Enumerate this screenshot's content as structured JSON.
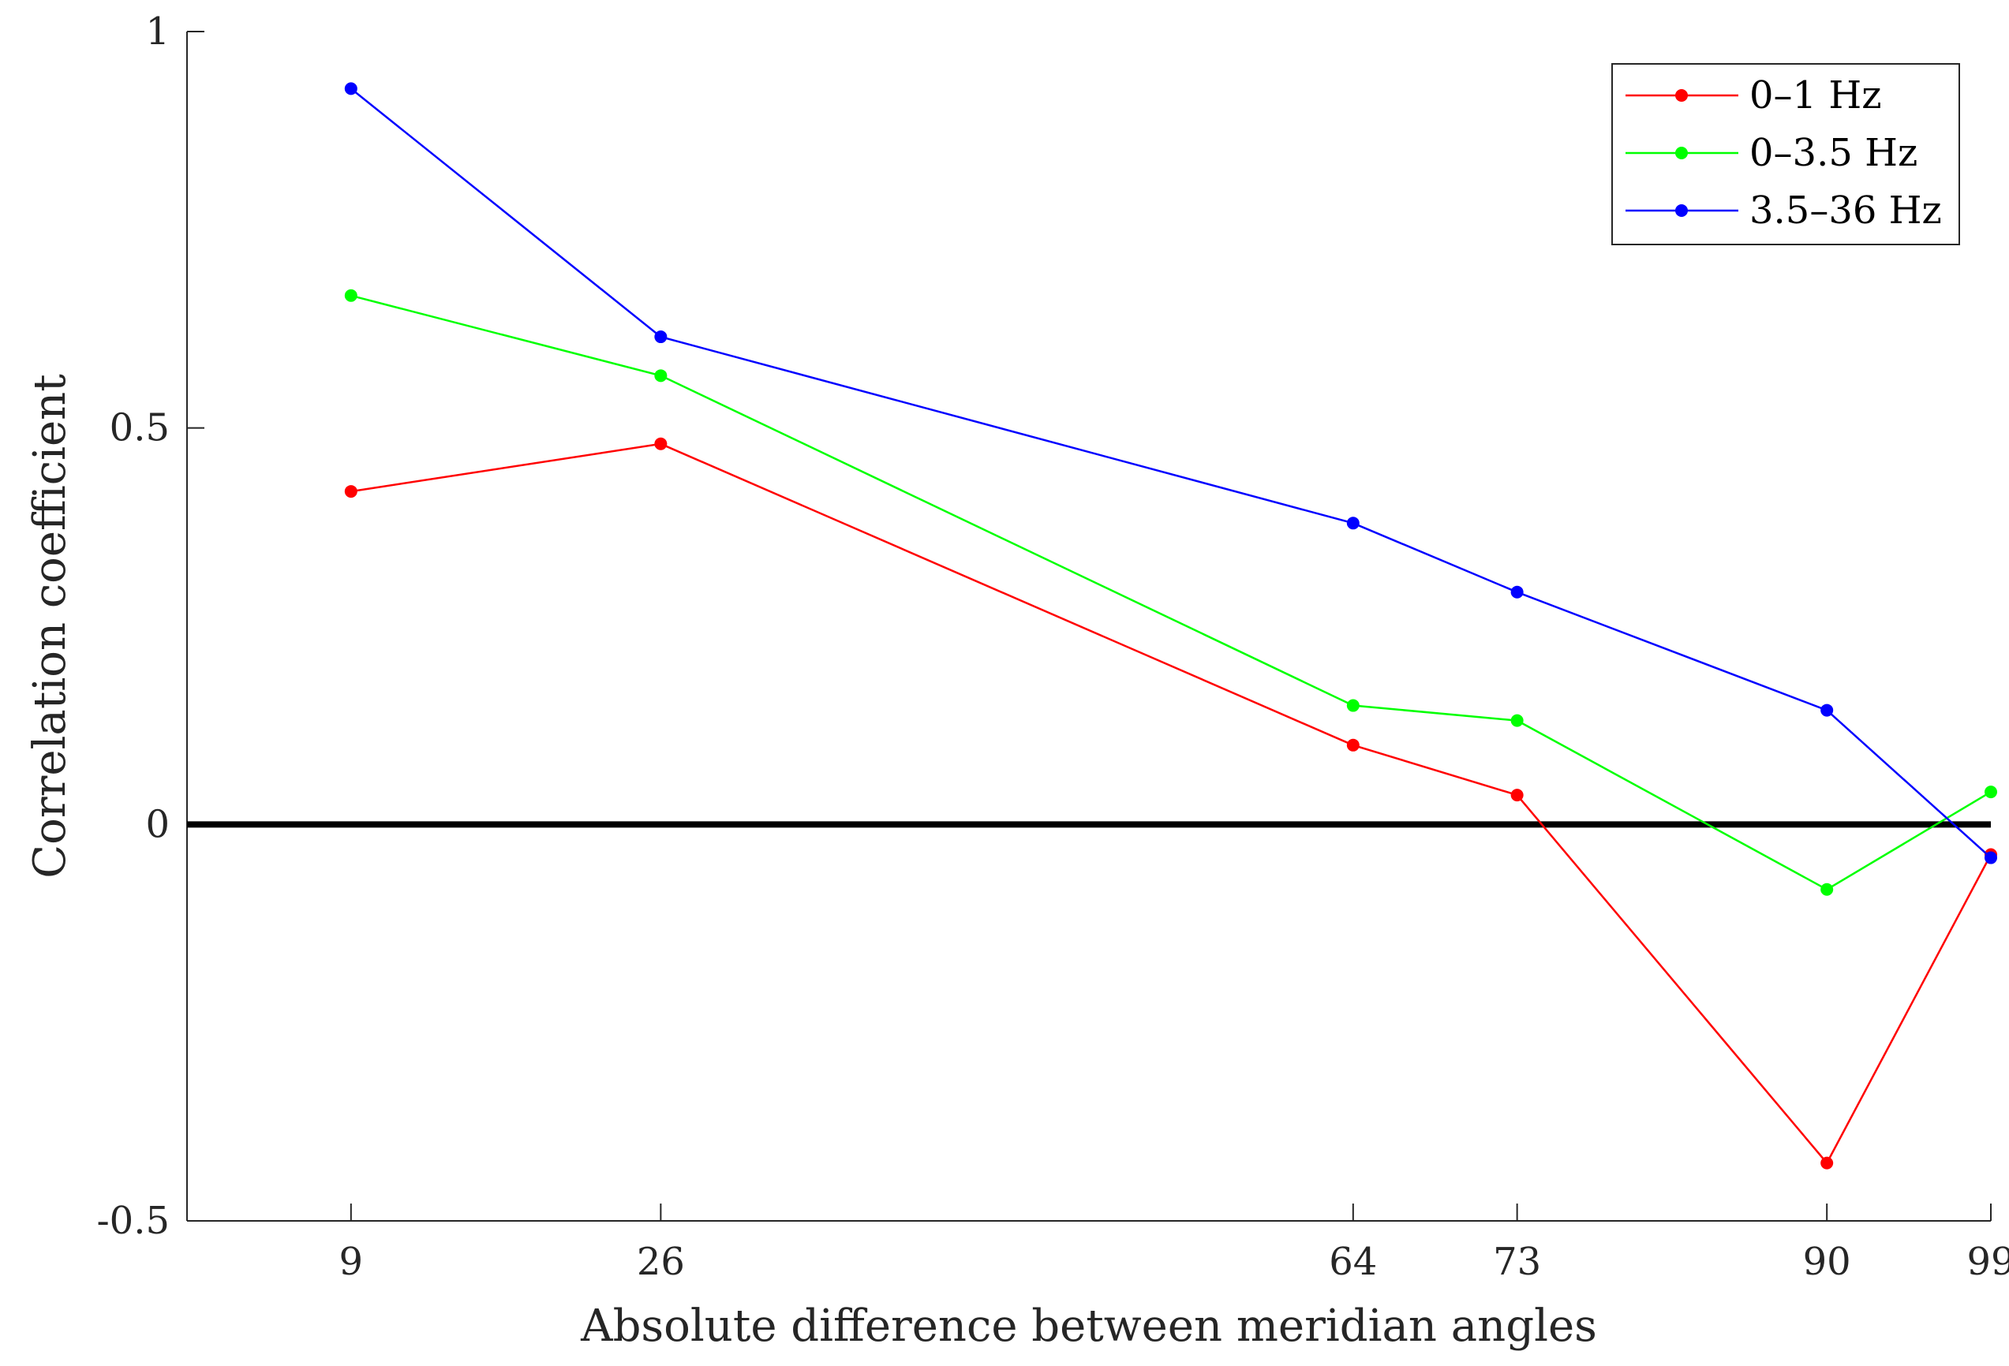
{
  "chart_data": {
    "type": "line",
    "title": "",
    "xlabel": "Absolute difference between meridian angles",
    "ylabel": "Correlation coefficient",
    "x": [
      9,
      26,
      64,
      73,
      90,
      99
    ],
    "x_tick_labels": [
      "9",
      "26",
      "64",
      "73",
      "90",
      "99"
    ],
    "y_ticks": [
      -0.5,
      0,
      0.5,
      1
    ],
    "y_tick_labels": [
      "-0.5",
      "0",
      "0.5",
      "1"
    ],
    "xlim": [
      0,
      99
    ],
    "ylim": [
      -0.5,
      1
    ],
    "reference_line": {
      "y": 0,
      "color": "#000000"
    },
    "legend_position": "top-right",
    "series": [
      {
        "name": "0–1 Hz",
        "color": "#ff0000",
        "values": [
          0.42,
          0.48,
          0.1,
          0.037,
          -0.427,
          -0.038
        ]
      },
      {
        "name": "0–3.5 Hz",
        "color": "#00ff00",
        "values": [
          0.667,
          0.566,
          0.15,
          0.131,
          -0.082,
          0.041
        ]
      },
      {
        "name": "3.5–36 Hz",
        "color": "#0000ff",
        "values": [
          0.928,
          0.615,
          0.38,
          0.293,
          0.144,
          -0.042
        ]
      }
    ]
  }
}
